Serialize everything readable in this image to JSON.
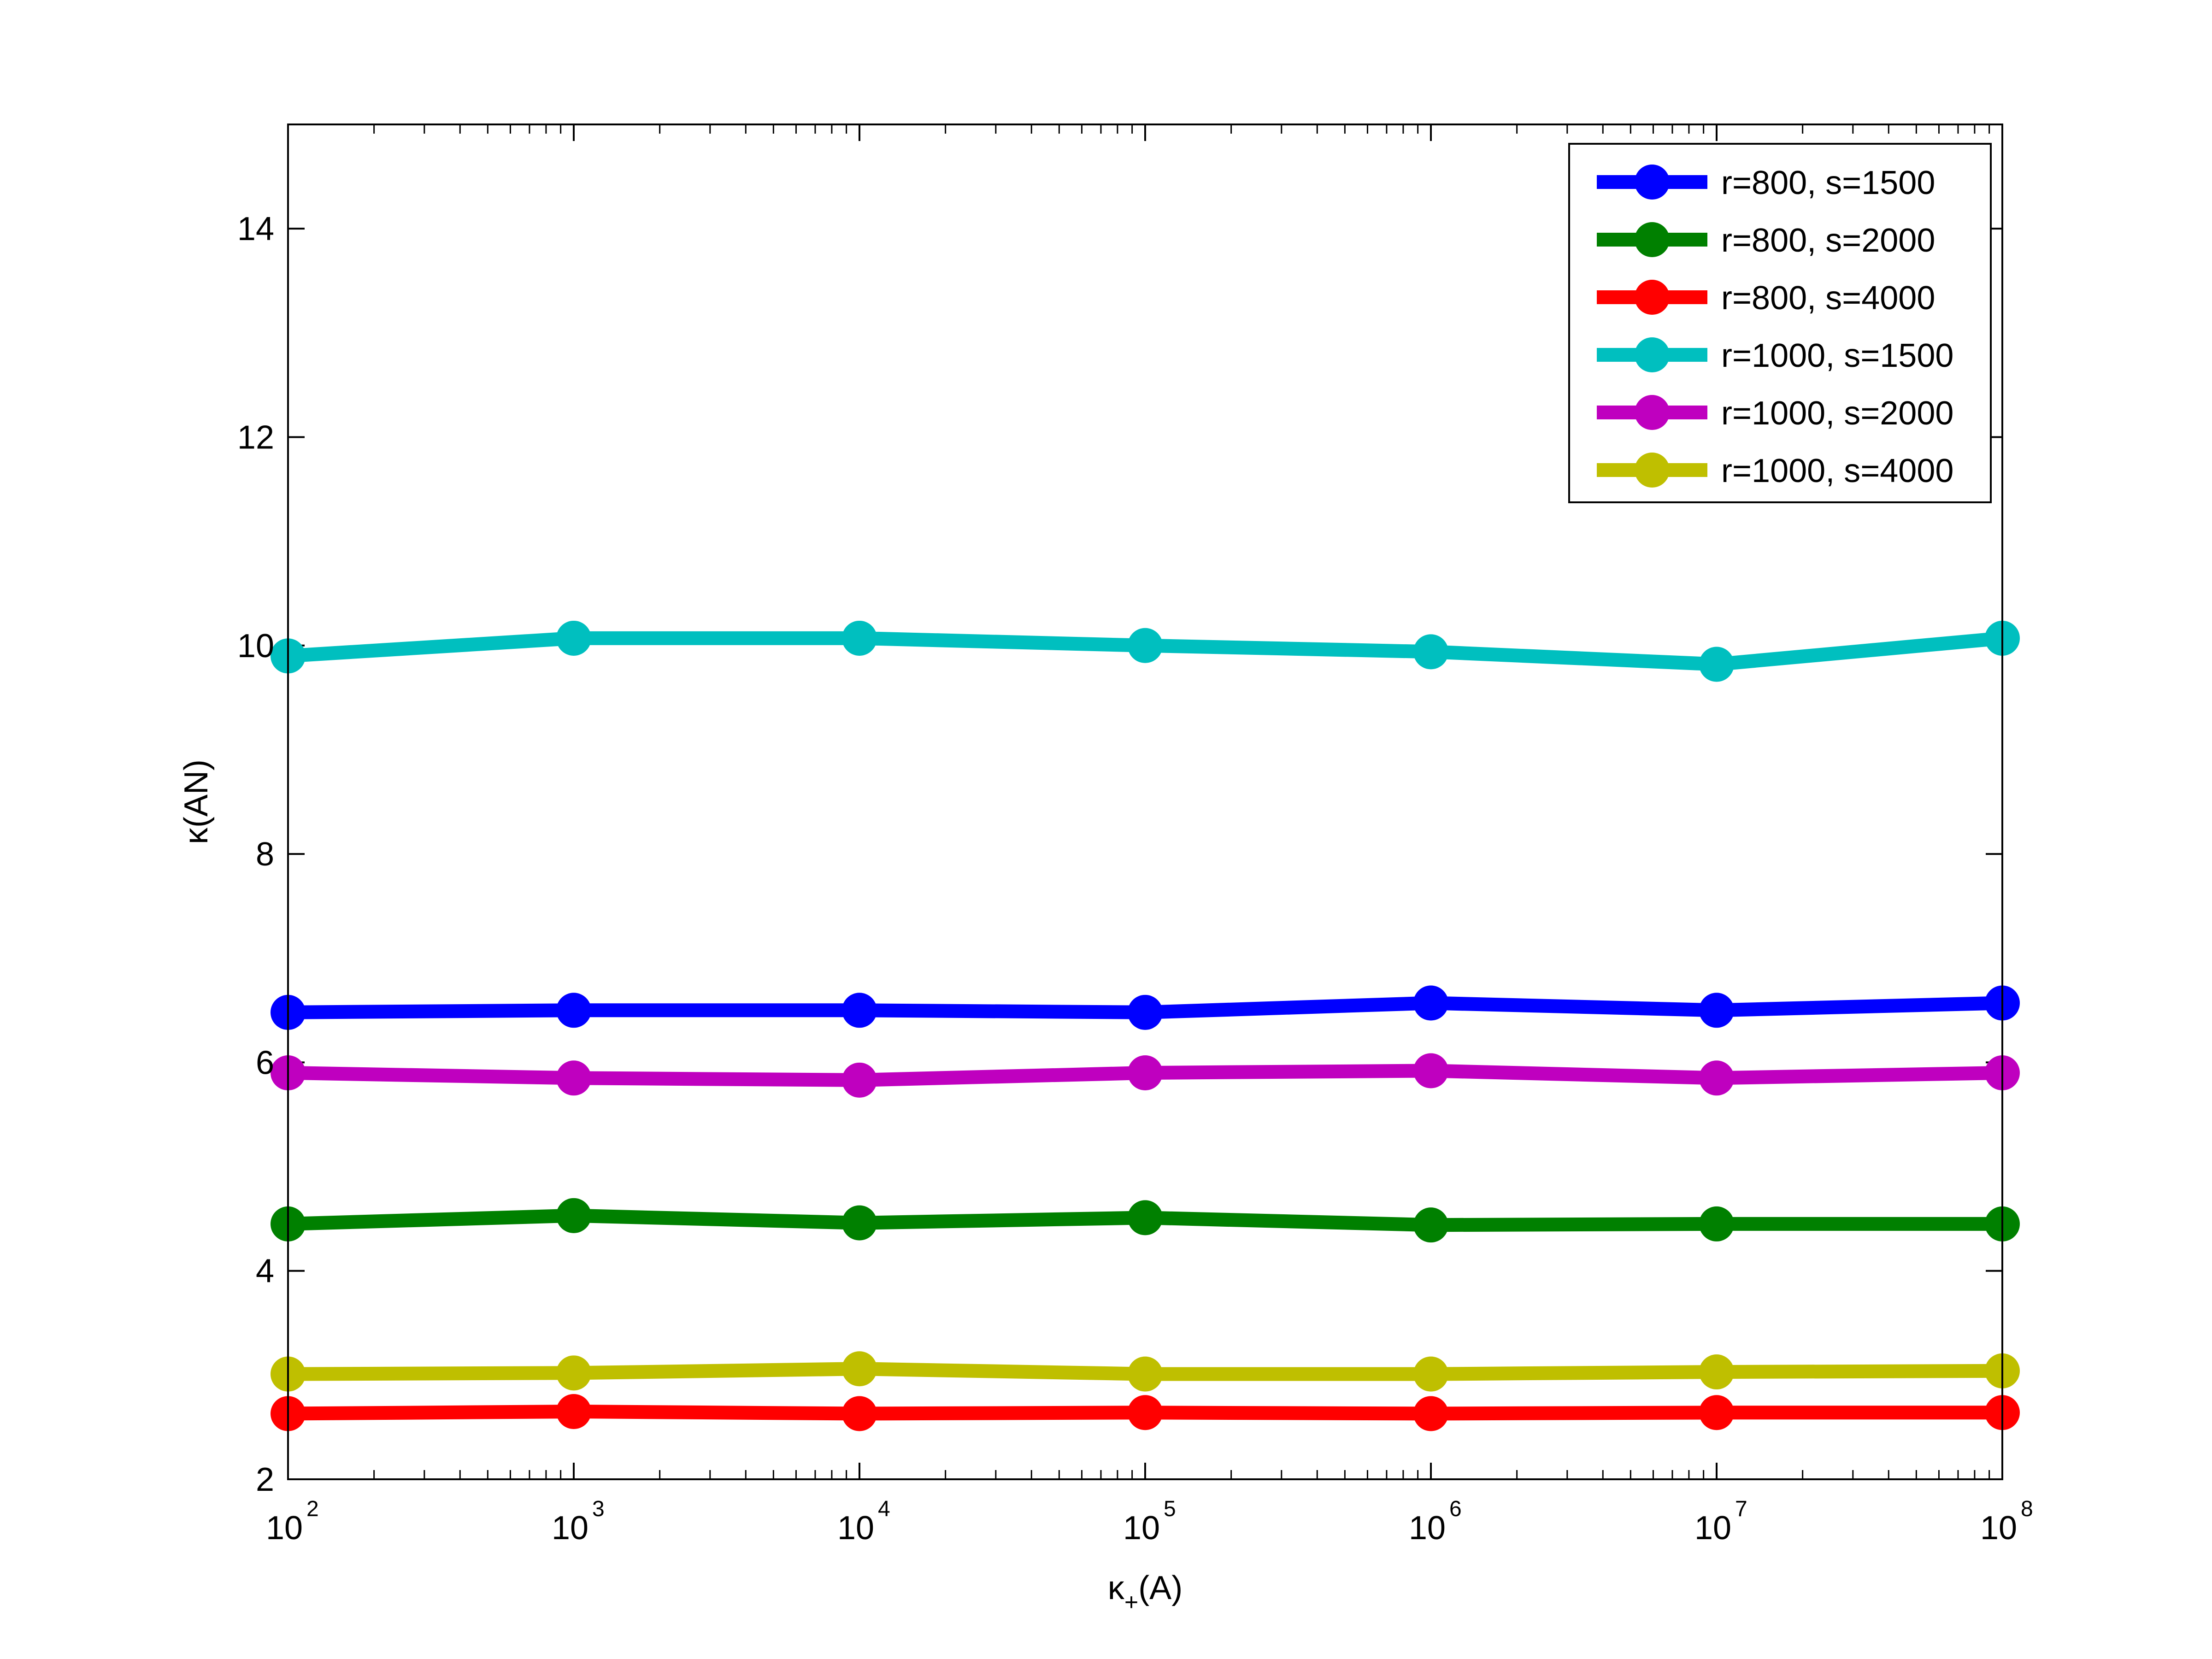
{
  "chart_data": {
    "type": "line",
    "title": "",
    "xlabel": "κ",
    "xlabel_subscript": "+",
    "xlabel_suffix": "(A)",
    "ylabel": "κ(AN)",
    "xscale": "log",
    "x": [
      100,
      1000,
      10000,
      100000,
      1000000,
      10000000,
      100000000
    ],
    "xlim": [
      100,
      100000000
    ],
    "ylim": [
      2,
      15
    ],
    "xtick_exponents": [
      "2",
      "3",
      "4",
      "5",
      "6",
      "7",
      "8"
    ],
    "xtick_base": "10",
    "yticks": [
      2,
      4,
      6,
      8,
      10,
      12,
      14
    ],
    "ytick_labels": [
      "2",
      "4",
      "6",
      "8",
      "10",
      "12",
      "14"
    ],
    "grid": false,
    "legend_position": "top-right",
    "series": [
      {
        "name": "r=800, s=1500",
        "color": "#0000ff",
        "values": [
          6.48,
          6.5,
          6.5,
          6.48,
          6.57,
          6.5,
          6.57
        ]
      },
      {
        "name": "r=800, s=2000",
        "color": "#008000",
        "values": [
          4.45,
          4.53,
          4.46,
          4.51,
          4.44,
          4.45,
          4.45
        ]
      },
      {
        "name": "r=800, s=4000",
        "color": "#ff0000",
        "values": [
          2.63,
          2.65,
          2.63,
          2.64,
          2.63,
          2.64,
          2.64
        ]
      },
      {
        "name": "r=1000, s=1500",
        "color": "#00bfbf",
        "values": [
          9.9,
          10.07,
          10.07,
          10.0,
          9.94,
          9.82,
          10.07
        ]
      },
      {
        "name": "r=1000, s=2000",
        "color": "#bf00bf",
        "values": [
          5.9,
          5.85,
          5.83,
          5.9,
          5.92,
          5.85,
          5.9
        ]
      },
      {
        "name": "r=1000, s=4000",
        "color": "#bfbf00",
        "values": [
          3.01,
          3.02,
          3.06,
          3.01,
          3.01,
          3.03,
          3.04
        ]
      }
    ]
  }
}
